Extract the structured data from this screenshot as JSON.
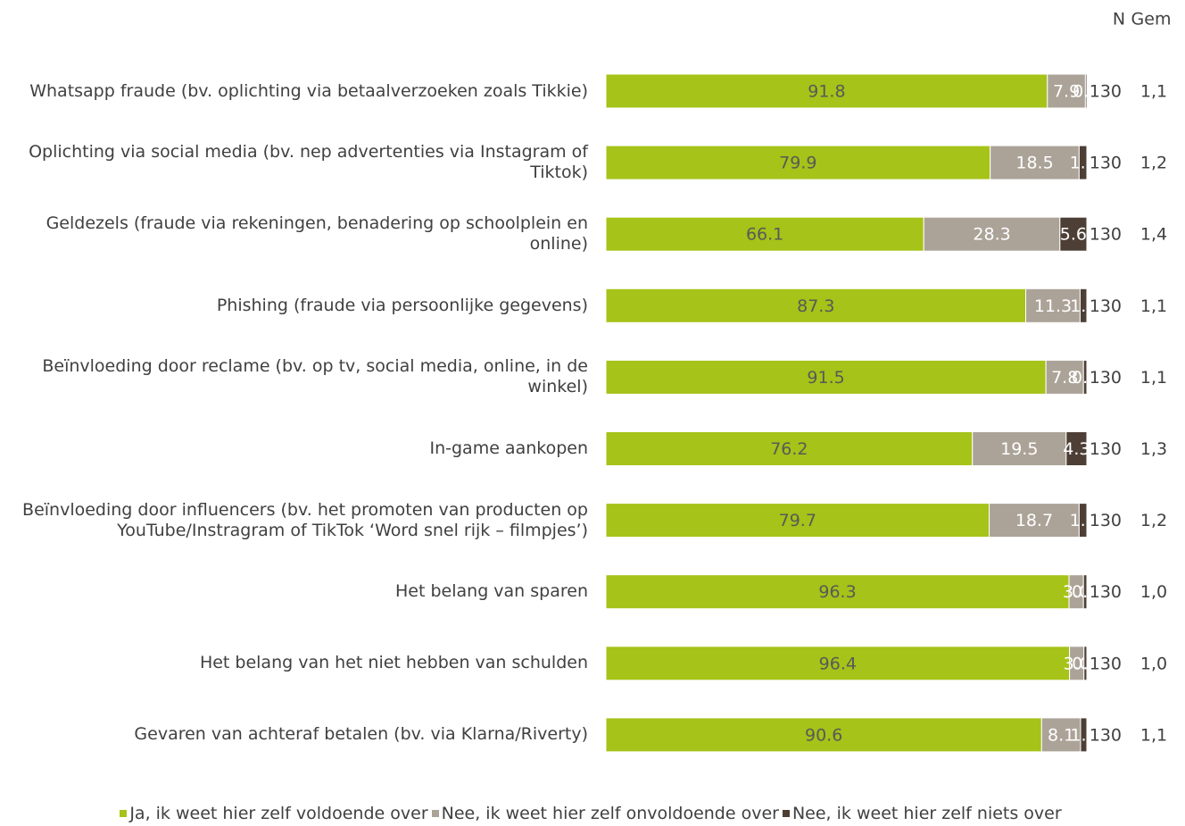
{
  "chart_data": {
    "type": "stacked-bar-horizontal",
    "categories": [
      "Whatsapp fraude (bv. oplichting via betaalverzoeken zoals Tikkie)",
      "Oplichting via social media (bv. nep advertenties via Instagram of Tiktok)",
      "Geldezels (fraude via rekeningen, benadering op schoolplein en online)",
      "Phishing (fraude via persoonlijke gegevens)",
      "Beïnvloeding door reclame (bv. op tv, social media, online, in de winkel)",
      "In-game aankopen",
      "Beïnvloeding door influencers (bv. het promoten van producten op YouTube/Instragram of TikTok ‘Word snel rijk – filmpjes’)",
      "Het belang van sparen",
      "Het belang van het niet hebben van schulden",
      "Gevaren van achteraf betalen (bv. via Klarna/Riverty)"
    ],
    "series": [
      {
        "name": "Ja, ik weet hier zelf voldoende over",
        "color": "#a5c318",
        "label_color": "#595959",
        "values": [
          91.8,
          79.9,
          66.1,
          87.3,
          91.5,
          76.2,
          79.7,
          96.3,
          96.4,
          90.6
        ],
        "value_labels": [
          "91.8",
          "79.9",
          "66.1",
          "87.3",
          "91.5",
          "76.2",
          "79.7",
          "96.3",
          "96.4",
          "90.6"
        ]
      },
      {
        "name": "Nee, ik weet hier zelf onvoldoende over",
        "color": "#aca398",
        "label_color": "#ffffff",
        "values": [
          7.9,
          18.5,
          28.3,
          11.3,
          7.8,
          19.5,
          18.7,
          3.0,
          3.0,
          8.1
        ],
        "value_labels": [
          "7.9",
          "18.5",
          "28.3",
          "11.3",
          "7.8",
          "19.5",
          "18.7",
          "3.0",
          "3.0",
          "8.1"
        ]
      },
      {
        "name": "Nee, ik weet hier zelf niets over",
        "color": "#4d3f35",
        "label_color": "#ffffff",
        "values": [
          0.3,
          1.6,
          5.6,
          1.4,
          0.7,
          4.3,
          1.6,
          0.7,
          0.6,
          1.3
        ],
        "value_labels": [
          "0.3",
          "1.6",
          "5.6",
          "1.4",
          "0.7",
          "4.3",
          "1.6",
          "0.7",
          "0.6",
          "1.3"
        ]
      }
    ],
    "xlim": [
      0,
      100
    ],
    "n_header": "N",
    "gem_header": "Gem",
    "n": [
      130,
      130,
      130,
      130,
      130,
      130,
      130,
      130,
      130,
      130
    ],
    "gem": [
      "1,1",
      "1,2",
      "1,4",
      "1,1",
      "1,1",
      "1,3",
      "1,2",
      "1,0",
      "1,0",
      "1,1"
    ],
    "legend": "bottom"
  }
}
